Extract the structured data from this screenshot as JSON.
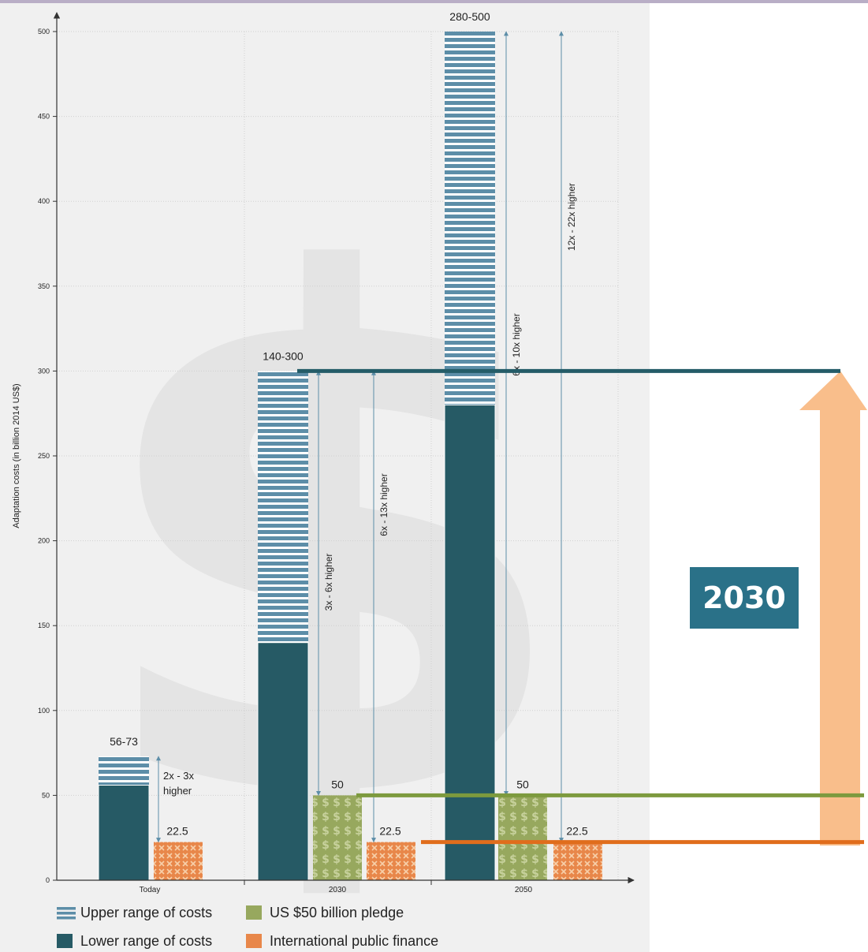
{
  "colors": {
    "lower": "#265a65",
    "upper": "#5d8ea8",
    "pledge": "#97a85e",
    "public": "#e8874a",
    "axis": "#333333",
    "arrow": "#5d8ea8",
    "overlay_arrow": "#f9be8b",
    "overlay_line_300": "#245c68",
    "overlay_line_50": "#7d9a3e",
    "overlay_line_22": "#e06d1c",
    "badge": "#2a7188"
  },
  "badge": {
    "label": "2030"
  },
  "chart_data": {
    "type": "bar",
    "ylabel": "Adaptation costs (in billion 2014 US$)",
    "ylim": [
      0,
      500
    ],
    "yticks": [
      0,
      50,
      100,
      150,
      200,
      250,
      300,
      350,
      400,
      450,
      500
    ],
    "grid": true,
    "categories": [
      "Today",
      "2030",
      "2050"
    ],
    "series": [
      {
        "name": "Lower range of costs",
        "values": [
          56,
          140,
          280
        ]
      },
      {
        "name": "Upper range of costs",
        "values": [
          73,
          300,
          500
        ]
      },
      {
        "name": "US $50 billion pledge",
        "values": [
          null,
          50,
          50
        ]
      },
      {
        "name": "International public finance",
        "values": [
          22.5,
          22.5,
          22.5
        ]
      }
    ],
    "range_labels": [
      "56-73",
      "140-300",
      "280-500"
    ],
    "value_labels": {
      "pledge": "50",
      "public": "22.5"
    },
    "annotations": [
      {
        "category": "Today",
        "from": 22.5,
        "to": 73,
        "text": [
          "2x - 3x",
          "higher"
        ]
      },
      {
        "category": "2030",
        "from": 50,
        "to": 300,
        "text": [
          "3x - 6x higher"
        ]
      },
      {
        "category": "2030",
        "from": 22.5,
        "to": 300,
        "text": [
          "6x - 13x higher"
        ]
      },
      {
        "category": "2050",
        "from": 50,
        "to": 500,
        "text": [
          "6x - 10x higher"
        ]
      },
      {
        "category": "2050",
        "from": 22.5,
        "to": 500,
        "text": [
          "12x - 22x higher"
        ]
      }
    ],
    "legend": [
      {
        "key": "upper",
        "label": "Upper range of costs"
      },
      {
        "key": "pledge",
        "label": "US $50 billion pledge"
      },
      {
        "key": "lower",
        "label": "Lower range of costs"
      },
      {
        "key": "public",
        "label": "International public finance"
      }
    ],
    "legend_position": "bottom",
    "overlay": {
      "lines_at": [
        300,
        50,
        22.5
      ],
      "arrow_to": 300
    }
  }
}
